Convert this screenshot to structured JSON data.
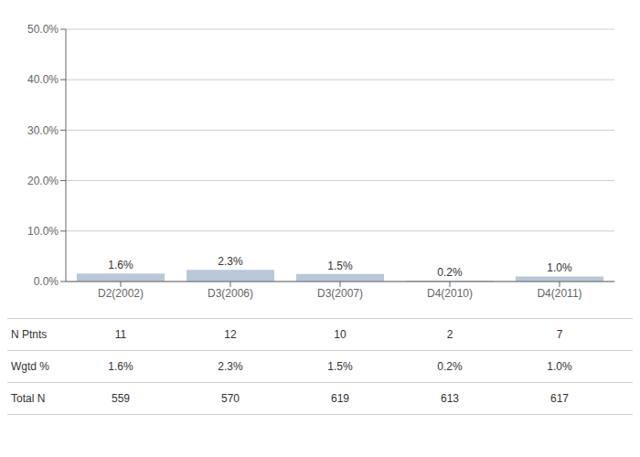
{
  "chart_data": {
    "type": "bar",
    "categories": [
      "D2(2002)",
      "D3(2006)",
      "D3(2007)",
      "D4(2010)",
      "D4(2011)"
    ],
    "values": [
      1.6,
      2.3,
      1.5,
      0.2,
      1.0
    ],
    "value_labels": [
      "1.6%",
      "2.3%",
      "1.5%",
      "0.2%",
      "1.0%"
    ],
    "data_labels": true,
    "color": "#b8c8d8",
    "ylim": [
      0,
      50
    ],
    "yticks": [
      {
        "value": 0,
        "label": "0.0%"
      },
      {
        "value": 10,
        "label": "10.0%"
      },
      {
        "value": 20,
        "label": "20.0%"
      },
      {
        "value": 30,
        "label": "30.0%"
      },
      {
        "value": 40,
        "label": "40.0%"
      },
      {
        "value": 50,
        "label": "50.0%"
      }
    ],
    "grid": true,
    "table": [
      {
        "label": "N Ptnts",
        "values": [
          11,
          12,
          10,
          2,
          7
        ]
      },
      {
        "label": "Wgtd %",
        "values": [
          1.6,
          2.3,
          1.5,
          0.2,
          1.0
        ],
        "value_labels": [
          "1.6%",
          "2.3%",
          "1.5%",
          "0.2%",
          "1.0%"
        ]
      },
      {
        "label": "Total N",
        "values": [
          559,
          570,
          619,
          613,
          617
        ]
      }
    ]
  }
}
